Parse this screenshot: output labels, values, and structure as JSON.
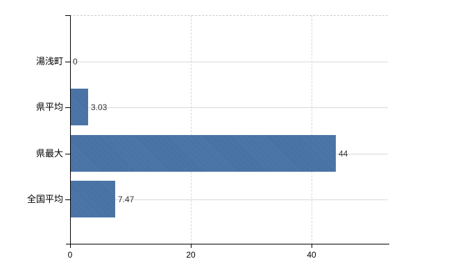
{
  "chart_data": {
    "type": "bar",
    "orientation": "horizontal",
    "categories": [
      "湯浅町",
      "県平均",
      "県最大",
      "全国平均"
    ],
    "values": [
      0,
      3.03,
      44,
      7.47
    ],
    "value_labels": [
      "0",
      "3.03",
      "44",
      "7.47"
    ],
    "series": [
      {
        "name": "",
        "values": [
          0,
          3.03,
          44,
          7.47
        ]
      }
    ],
    "xticks": [
      0,
      20,
      40
    ],
    "xtick_labels": [
      "0",
      "20",
      "40"
    ],
    "xlim": [
      0,
      52.6
    ],
    "grid": true,
    "legend": false,
    "bar_color": "#4371a8",
    "grid_color": "#d9d9d9",
    "axis_color": "#000000",
    "value_label_color": "#333333",
    "background_color": "#ffffff"
  }
}
